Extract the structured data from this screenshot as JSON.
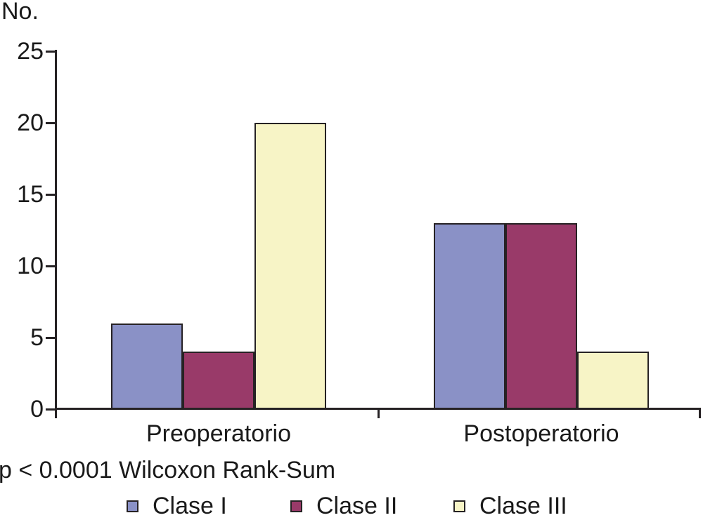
{
  "chart_data": {
    "type": "bar",
    "title": "",
    "ylabel": "No.",
    "xlabel": "",
    "categories": [
      "Preoperatorio",
      "Postoperatorio"
    ],
    "series": [
      {
        "name": "Clase I",
        "color": "#8a91c6",
        "values": [
          6,
          13
        ]
      },
      {
        "name": "Clase II",
        "color": "#993a69",
        "values": [
          4,
          13
        ]
      },
      {
        "name": "Clase III",
        "color": "#f7f4c6",
        "values": [
          20,
          4
        ]
      }
    ],
    "ylim": [
      0,
      25
    ],
    "yticks": [
      0,
      5,
      10,
      15,
      20,
      25
    ],
    "grid": false,
    "legend_position": "bottom",
    "annotation": "p < 0.0001 Wilcoxon Rank-Sum",
    "bar_outline_color": "#262224",
    "axis_color": "#262224"
  }
}
